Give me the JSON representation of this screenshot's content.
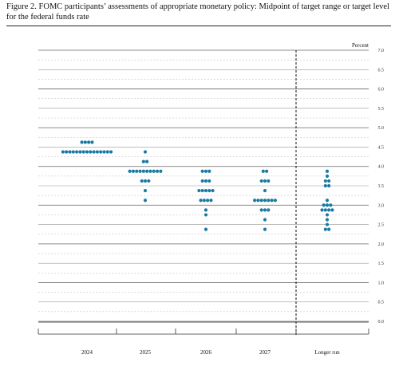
{
  "figure": {
    "title": "Figure 2.  FOMC participants’ assessments of appropriate monetary policy:  Midpoint of target range or target level for the federal funds rate"
  },
  "chart_data": {
    "type": "scatter",
    "title": "Figure 2.  FOMC participants’ assessments of appropriate monetary policy:  Midpoint of target range or target level for the federal funds rate",
    "ylabel": "Percent",
    "xlabel": "",
    "ylim": [
      0,
      7
    ],
    "yticks": [
      "7.0",
      "6.5",
      "6.0",
      "5.5",
      "5.0",
      "4.5",
      "4.0",
      "3.5",
      "3.0",
      "2.5",
      "2.0",
      "1.5",
      "1.0",
      "0.5",
      "0.0"
    ],
    "categories": [
      "2024",
      "2025",
      "2026",
      "2027",
      "Longer run"
    ],
    "grid": true,
    "dot_color": "#1a7aa3",
    "dots": [
      {
        "category": "2024",
        "rows": [
          {
            "rate": 4.625,
            "count": 4
          },
          {
            "rate": 4.375,
            "count": 15
          }
        ]
      },
      {
        "category": "2025",
        "rows": [
          {
            "rate": 4.375,
            "count": 1
          },
          {
            "rate": 4.125,
            "count": 2
          },
          {
            "rate": 3.875,
            "count": 10
          },
          {
            "rate": 3.625,
            "count": 3
          },
          {
            "rate": 3.375,
            "count": 1
          },
          {
            "rate": 3.125,
            "count": 1
          }
        ]
      },
      {
        "category": "2026",
        "rows": [
          {
            "rate": 3.875,
            "count": 3
          },
          {
            "rate": 3.625,
            "count": 3
          },
          {
            "rate": 3.375,
            "count": 5
          },
          {
            "rate": 3.125,
            "count": 4
          },
          {
            "rate": 2.875,
            "count": 1
          },
          {
            "rate": 2.75,
            "count": 1
          },
          {
            "rate": 2.375,
            "count": 1
          }
        ]
      },
      {
        "category": "2027",
        "rows": [
          {
            "rate": 3.875,
            "count": 2
          },
          {
            "rate": 3.625,
            "count": 3
          },
          {
            "rate": 3.375,
            "count": 1
          },
          {
            "rate": 3.125,
            "count": 7
          },
          {
            "rate": 2.875,
            "count": 3
          },
          {
            "rate": 2.625,
            "count": 1
          },
          {
            "rate": 2.375,
            "count": 1
          }
        ]
      },
      {
        "category": "Longer run",
        "rows": [
          {
            "rate": 3.875,
            "count": 1
          },
          {
            "rate": 3.75,
            "count": 1
          },
          {
            "rate": 3.625,
            "count": 2
          },
          {
            "rate": 3.5,
            "count": 2
          },
          {
            "rate": 3.125,
            "count": 1
          },
          {
            "rate": 3.0,
            "count": 3
          },
          {
            "rate": 2.875,
            "count": 4
          },
          {
            "rate": 2.75,
            "count": 1
          },
          {
            "rate": 2.625,
            "count": 1
          },
          {
            "rate": 2.5,
            "count": 1
          },
          {
            "rate": 2.375,
            "count": 2
          }
        ]
      }
    ]
  }
}
